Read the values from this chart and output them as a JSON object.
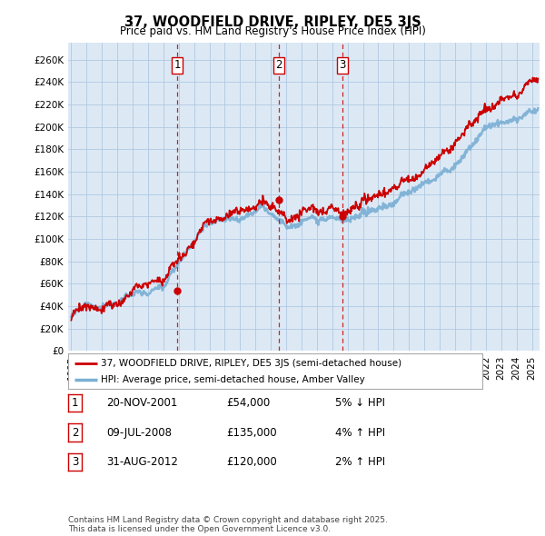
{
  "title": "37, WOODFIELD DRIVE, RIPLEY, DE5 3JS",
  "subtitle": "Price paid vs. HM Land Registry's House Price Index (HPI)",
  "ylabel_ticks": [
    "£0",
    "£20K",
    "£40K",
    "£60K",
    "£80K",
    "£100K",
    "£120K",
    "£140K",
    "£160K",
    "£180K",
    "£200K",
    "£220K",
    "£240K",
    "£260K"
  ],
  "ytick_values": [
    0,
    20000,
    40000,
    60000,
    80000,
    100000,
    120000,
    140000,
    160000,
    180000,
    200000,
    220000,
    240000,
    260000
  ],
  "ylim": [
    0,
    275000
  ],
  "xlim_start": 1994.8,
  "xlim_end": 2025.5,
  "background_color": "#ffffff",
  "chart_bg_color": "#dce9f5",
  "grid_color": "#b0c8e0",
  "hpi_color": "#7aafd4",
  "price_color": "#cc0000",
  "vline_color": "#cc0000",
  "sale_marker_color": "#cc0000",
  "transactions": [
    {
      "date_num": 2001.9,
      "price": 54000,
      "label": "1"
    },
    {
      "date_num": 2008.54,
      "price": 135000,
      "label": "2"
    },
    {
      "date_num": 2012.67,
      "price": 120000,
      "label": "3"
    }
  ],
  "legend_label_red": "37, WOODFIELD DRIVE, RIPLEY, DE5 3JS (semi-detached house)",
  "legend_label_blue": "HPI: Average price, semi-detached house, Amber Valley",
  "table_rows": [
    {
      "num": "1",
      "date": "20-NOV-2001",
      "price": "£54,000",
      "hpi": "5% ↓ HPI"
    },
    {
      "num": "2",
      "date": "09-JUL-2008",
      "price": "£135,000",
      "hpi": "4% ↑ HPI"
    },
    {
      "num": "3",
      "date": "31-AUG-2012",
      "price": "£120,000",
      "hpi": "2% ↑ HPI"
    }
  ],
  "footer": "Contains HM Land Registry data © Crown copyright and database right 2025.\nThis data is licensed under the Open Government Licence v3.0."
}
